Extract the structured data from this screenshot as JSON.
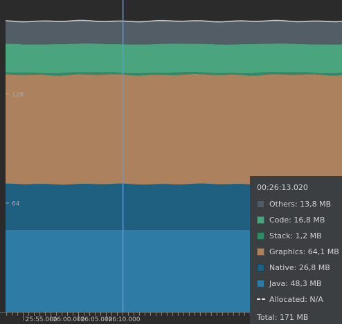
{
  "chart_data": {
    "type": "area",
    "stacked": true,
    "y_ticks": [
      {
        "value": 64,
        "label": "64"
      },
      {
        "value": 128,
        "label": "128"
      }
    ],
    "ylim": [
      0,
      183
    ],
    "xlim": [
      1551.8,
      1612.6
    ],
    "x_ticks": [
      {
        "value": 1555,
        "label": "25:55.000"
      },
      {
        "value": 1560,
        "label": "26:00.000"
      },
      {
        "value": 1565,
        "label": "26:05.000"
      },
      {
        "value": 1570,
        "label": "26:10.000"
      }
    ],
    "x_minor_step": 1,
    "cursor_x": 1573.02,
    "series": [
      {
        "name": "Java",
        "color": "#2e7ba5",
        "values": [
          48.3,
          48.3
        ]
      },
      {
        "name": "Native",
        "color": "#1f5f80",
        "values": [
          26.8,
          26.8
        ]
      },
      {
        "name": "Graphics",
        "color": "#ab825d",
        "values": [
          64.1,
          64.1
        ]
      },
      {
        "name": "Stack",
        "color": "#2f8a68",
        "values": [
          1.2,
          1.2
        ]
      },
      {
        "name": "Code",
        "color": "#4aa57f",
        "values": [
          16.8,
          16.8
        ]
      },
      {
        "name": "Others",
        "color": "#525d66",
        "values": [
          13.8,
          13.8
        ]
      }
    ],
    "allocated_line_color": "#c8c8c8"
  },
  "tooltip": {
    "time": "00:26:13.020",
    "items": [
      {
        "label": "Others: 13,8 MB",
        "color": "#525d66"
      },
      {
        "label": "Code: 16,8 MB",
        "color": "#4aa57f"
      },
      {
        "label": "Stack: 1,2 MB",
        "color": "#2f8a68"
      },
      {
        "label": "Graphics: 64,1 MB",
        "color": "#ab825d"
      },
      {
        "label": "Native: 26,8 MB",
        "color": "#1f5f80"
      },
      {
        "label": "Java: 48,3 MB",
        "color": "#2e7ba5"
      }
    ],
    "allocated": "Allocated: N/A",
    "total": "Total: 171 MB"
  },
  "colors": {
    "background": "#2b2b2b",
    "cursor": "#5e9ae0",
    "tooltip_bg": "#3c3f41"
  }
}
